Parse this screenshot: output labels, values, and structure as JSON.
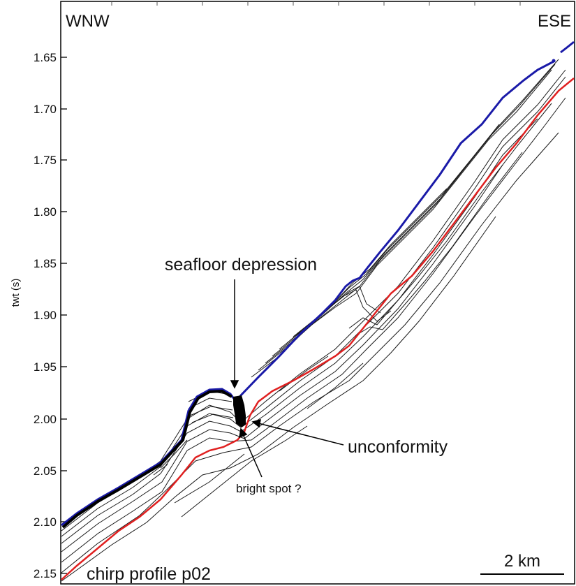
{
  "labels": {
    "left_direction": "WNW",
    "right_direction": "ESE",
    "y_axis_label": "twt (s)",
    "profile_name": "chirp profile p02",
    "scale_bar": "2 km",
    "annotation_depression": "seafloor depression",
    "annotation_unconformity": "unconformity",
    "annotation_bright_spot": "bright spot ?"
  },
  "axis": {
    "ticks": [
      "1.65",
      "1.70",
      "1.75",
      "1.80",
      "1.85",
      "1.90",
      "1.95",
      "2.00",
      "2.05",
      "2.10",
      "2.15"
    ]
  },
  "colors": {
    "seafloor_horizon": "#1a1aa8",
    "unconformity_horizon": "#e02020",
    "reflectors": "#1a1a1a",
    "frame": "#000000"
  }
}
